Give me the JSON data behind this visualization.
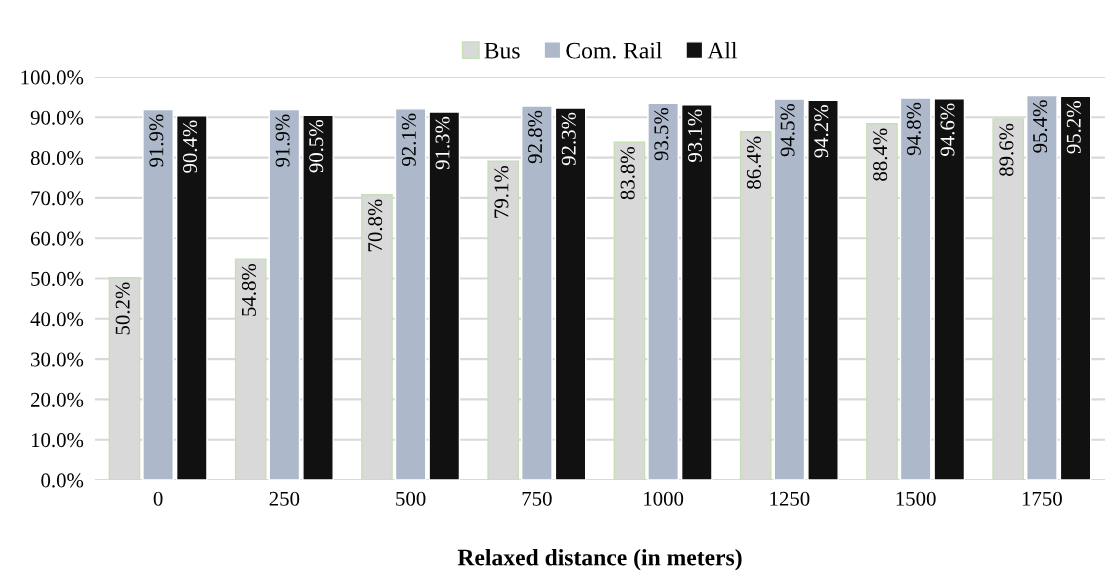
{
  "chart_data": {
    "type": "bar",
    "xlabel": "Relaxed distance (in meters)",
    "categories": [
      "0",
      "250",
      "500",
      "750",
      "1000",
      "1250",
      "1500",
      "1750"
    ],
    "series": [
      {
        "name": "Bus",
        "color": "#d9d9d9",
        "values": [
          50.2,
          54.8,
          70.8,
          79.1,
          83.8,
          86.4,
          88.4,
          89.6
        ],
        "value_labels": [
          "50.2%",
          "54.8%",
          "70.8%",
          "79.1%",
          "83.8%",
          "86.4%",
          "88.4%",
          "89.6%"
        ]
      },
      {
        "name": "Com. Rail",
        "color": "#adb9ca",
        "values": [
          91.9,
          91.9,
          92.1,
          92.8,
          93.5,
          94.5,
          94.8,
          95.4
        ],
        "value_labels": [
          "91.9%",
          "91.9%",
          "92.1%",
          "92.8%",
          "93.5%",
          "94.5%",
          "94.8%",
          "95.4%"
        ]
      },
      {
        "name": "All",
        "color": "#111111",
        "values": [
          90.4,
          90.5,
          91.3,
          92.3,
          93.1,
          94.2,
          94.6,
          95.2
        ],
        "value_labels": [
          "90.4%",
          "90.5%",
          "91.3%",
          "92.3%",
          "93.1%",
          "94.2%",
          "94.6%",
          "95.2%"
        ]
      }
    ],
    "ylim": [
      0,
      100
    ],
    "yticks": [
      {
        "value": 0,
        "label": "0.0%"
      },
      {
        "value": 10,
        "label": "10.0%"
      },
      {
        "value": 20,
        "label": "20.0%"
      },
      {
        "value": 30,
        "label": "30.0%"
      },
      {
        "value": 40,
        "label": "40.0%"
      },
      {
        "value": 50,
        "label": "50.0%"
      },
      {
        "value": 60,
        "label": "60.0%"
      },
      {
        "value": 70,
        "label": "70.0%"
      },
      {
        "value": 80,
        "label": "80.0%"
      },
      {
        "value": 90,
        "label": "90.0%"
      },
      {
        "value": 100,
        "label": "100.0%"
      }
    ],
    "grid": "y",
    "legend": "top"
  }
}
